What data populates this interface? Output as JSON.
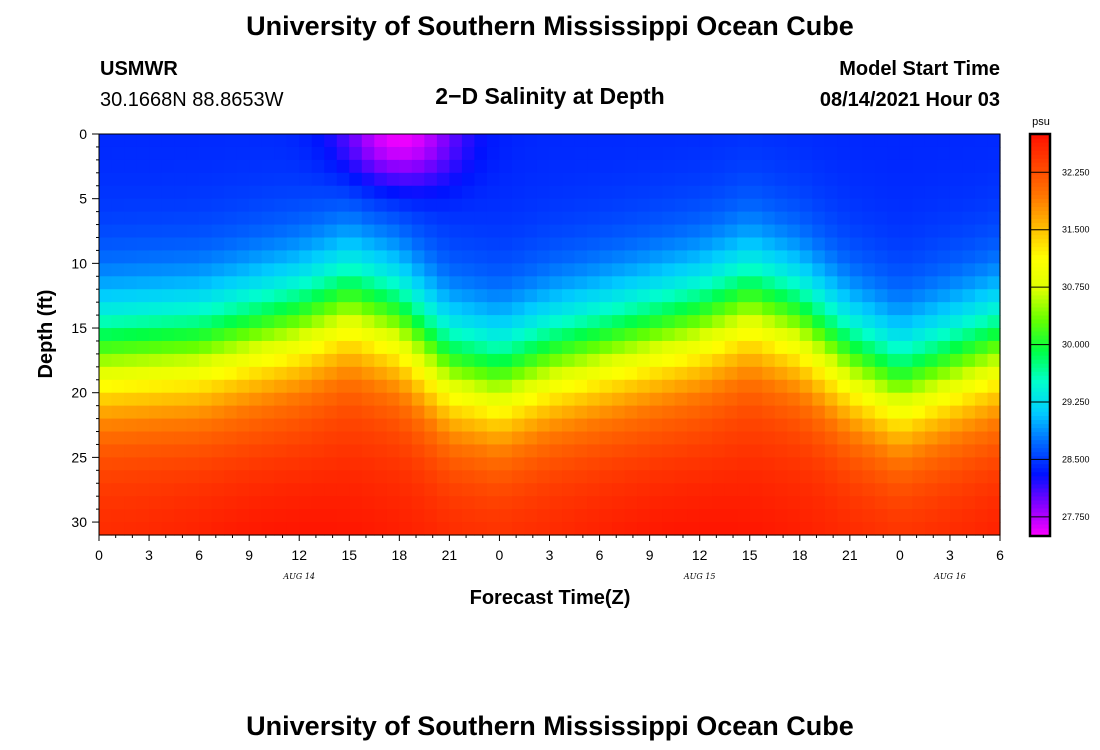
{
  "header": {
    "title": "University of Southern Mississippi Ocean Cube",
    "footer_title": "University of Southern Mississippi Ocean Cube",
    "station": "USMWR",
    "coords": "30.1668N  88.8653W",
    "model_label": "Model Start Time",
    "model_time": "08/14/2021 Hour 03"
  },
  "chart_data": {
    "type": "heatmap",
    "title": "2−D Salinity at Depth",
    "xlabel": "Forecast Time(Z)",
    "ylabel": "Depth (ft)",
    "x_tick_labels": [
      "0",
      "3",
      "6",
      "9",
      "12",
      "15",
      "18",
      "21",
      "0",
      "3",
      "6",
      "9",
      "12",
      "15",
      "18",
      "21",
      "0",
      "3",
      "6"
    ],
    "date_labels": [
      {
        "label": "AUG 14",
        "at_hour": 12
      },
      {
        "label": "AUG 15",
        "at_hour": 36
      },
      {
        "label": "AUG 16",
        "at_hour": 51
      }
    ],
    "y_ticks": [
      0,
      5,
      10,
      15,
      20,
      25,
      30
    ],
    "xlim": [
      0,
      54
    ],
    "ylim": [
      0,
      31
    ],
    "y_inverted": true,
    "colorbar": {
      "unit": "psu",
      "labels": [
        "32.250",
        "31.500",
        "30.750",
        "30.000",
        "29.250",
        "28.500",
        "27.750"
      ],
      "values": [
        32.25,
        31.5,
        30.75,
        30.0,
        29.25,
        28.5,
        27.75
      ],
      "range": [
        27.5,
        32.75
      ],
      "colors": [
        "#ff00ff",
        "#8800ff",
        "#0011ff",
        "#0066ff",
        "#00ccff",
        "#00ffcc",
        "#00ff44",
        "#66ff00",
        "#ddff00",
        "#ffff00",
        "#ffbb00",
        "#ff7700",
        "#ff4400",
        "#ff1100"
      ]
    },
    "halocline_depth_ft": [
      {
        "hour": 0,
        "depth": 17.5
      },
      {
        "hour": 6,
        "depth": 17.0
      },
      {
        "hour": 12,
        "depth": 15.0
      },
      {
        "hour": 15,
        "depth": 13.5
      },
      {
        "hour": 18,
        "depth": 15.0
      },
      {
        "hour": 21,
        "depth": 18.5
      },
      {
        "hour": 24,
        "depth": 19.5
      },
      {
        "hour": 27,
        "depth": 18.0
      },
      {
        "hour": 33,
        "depth": 16.0
      },
      {
        "hour": 36,
        "depth": 15.0
      },
      {
        "hour": 39,
        "depth": 13.5
      },
      {
        "hour": 42,
        "depth": 15.0
      },
      {
        "hour": 45,
        "depth": 18.0
      },
      {
        "hour": 48,
        "depth": 20.0
      },
      {
        "hour": 51,
        "depth": 18.5
      },
      {
        "hour": 54,
        "depth": 17.0
      }
    ],
    "surface_salinity_psu": {
      "fresh_min": 27.5,
      "typical": 28.4,
      "bottom_max": 32.6
    }
  }
}
